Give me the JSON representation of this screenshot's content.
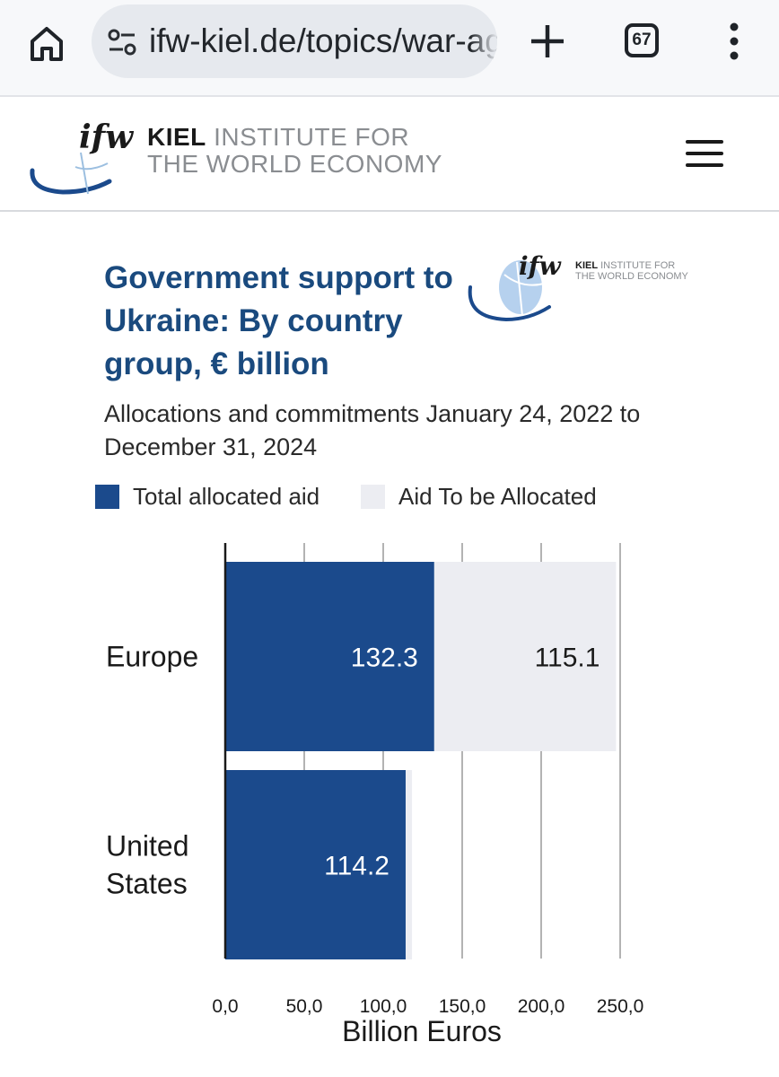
{
  "browser": {
    "url": "ifw-kiel.de/topics/war-against-ukraine",
    "tab_count": "67"
  },
  "site": {
    "logo_abbr": "ifw",
    "logo_bold": "KIEL",
    "logo_rest_line1": "INSTITUTE FOR",
    "logo_line2": "THE WORLD ECONOMY"
  },
  "chart_logo": {
    "abbr": "ifw",
    "bold": "KIEL",
    "rest_line1": "INSTITUTE FOR",
    "line2": "THE WORLD ECONOMY"
  },
  "colors": {
    "allocated": "#1b4a8c",
    "to_be_allocated": "#ecedf2",
    "title": "#1a4a7e"
  },
  "chart_data": {
    "type": "bar",
    "orientation": "horizontal",
    "stacked": true,
    "title": "Government support to Ukraine: By country group, € billion",
    "subtitle": "Allocations and commitments January 24, 2022 to December 31, 2024",
    "categories": [
      "Europe",
      "United States"
    ],
    "category_labels": [
      [
        "Europe"
      ],
      [
        "United",
        "States"
      ]
    ],
    "series": [
      {
        "name": "Total allocated aid",
        "values": [
          132.3,
          114.2
        ],
        "color": "#1b4a8c",
        "label_color": "#ffffff"
      },
      {
        "name": "Aid To be Allocated",
        "values": [
          115.1,
          4.0
        ],
        "color": "#ecedf2",
        "label_color": "#1a1a1a"
      }
    ],
    "data_labels": [
      [
        "132.3",
        "114.2"
      ],
      [
        "115.1",
        ""
      ]
    ],
    "xlabel": "Billion Euros",
    "xlim": [
      0,
      250
    ],
    "xticks": [
      0,
      50,
      100,
      150,
      200,
      250
    ],
    "xtick_labels": [
      "0,0",
      "50,0",
      "100,0",
      "150,0",
      "200,0",
      "250,0"
    ],
    "grid": true,
    "legend": "top"
  }
}
